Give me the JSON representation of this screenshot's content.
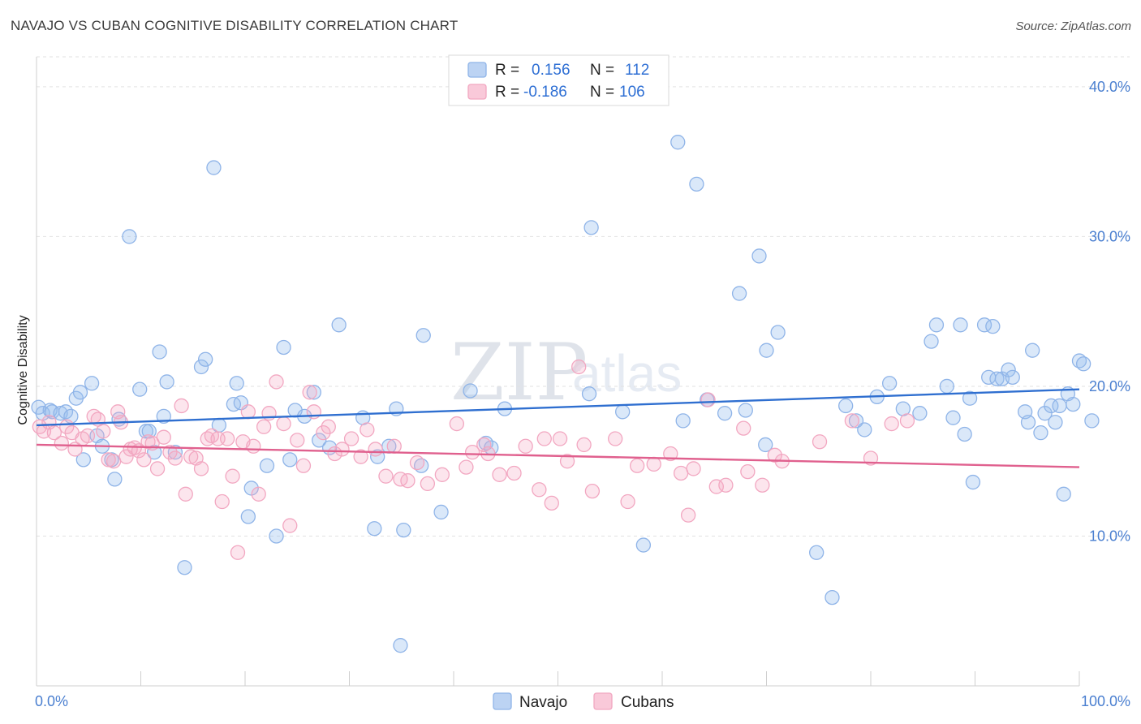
{
  "title": "NAVAJO VS CUBAN COGNITIVE DISABILITY CORRELATION CHART",
  "source": "Source: ZipAtlas.com",
  "watermark": "ZIPatlas",
  "chart_data": {
    "type": "scatter",
    "title": "NAVAJO VS CUBAN COGNITIVE DISABILITY CORRELATION CHART",
    "ylabel": "Cognitive Disability",
    "xlim": [
      0,
      100
    ],
    "ylim": [
      0,
      42
    ],
    "x_tick_labels": [
      "0.0%",
      "100.0%"
    ],
    "y_ticks": [
      10,
      20,
      30,
      40
    ],
    "y_tick_labels": [
      "10.0%",
      "20.0%",
      "30.0%",
      "40.0%"
    ],
    "grid": "horizontal-dashed",
    "legend": {
      "placement": "top-center",
      "entries": [
        {
          "r_label": "R =",
          "r": "0.156",
          "n_label": "N =",
          "n": "112"
        },
        {
          "r_label": "R =",
          "r": "-0.186",
          "n_label": "N =",
          "n": "106"
        }
      ]
    },
    "series": [
      {
        "name": "Navajo",
        "color": "#8fb4e8",
        "line_color": "#2f6fd0",
        "trend": [
          [
            0,
            17.4
          ],
          [
            100,
            19.8
          ]
        ],
        "points": [
          [
            0.2,
            18.6
          ],
          [
            0.6,
            18.2
          ],
          [
            1.3,
            18.4
          ],
          [
            1.5,
            18.3
          ],
          [
            2.3,
            18.2
          ],
          [
            2.8,
            18.3
          ],
          [
            3.3,
            18.0
          ],
          [
            3.8,
            19.2
          ],
          [
            4.2,
            19.6
          ],
          [
            4.5,
            15.1
          ],
          [
            5.3,
            20.2
          ],
          [
            5.8,
            16.7
          ],
          [
            6.3,
            16.0
          ],
          [
            7.2,
            15.1
          ],
          [
            7.5,
            13.8
          ],
          [
            7.9,
            17.8
          ],
          [
            8.9,
            30.0
          ],
          [
            9.9,
            19.8
          ],
          [
            10.5,
            17.0
          ],
          [
            10.8,
            17.0
          ],
          [
            11.3,
            15.6
          ],
          [
            11.8,
            22.3
          ],
          [
            12.2,
            18.0
          ],
          [
            12.5,
            20.3
          ],
          [
            13.3,
            15.6
          ],
          [
            14.2,
            7.9
          ],
          [
            15.8,
            21.3
          ],
          [
            16.2,
            21.8
          ],
          [
            17.0,
            34.6
          ],
          [
            17.5,
            17.4
          ],
          [
            18.9,
            18.8
          ],
          [
            19.2,
            20.2
          ],
          [
            19.6,
            18.9
          ],
          [
            20.3,
            11.3
          ],
          [
            20.6,
            13.2
          ],
          [
            22.1,
            14.7
          ],
          [
            23.0,
            10.0
          ],
          [
            23.7,
            22.6
          ],
          [
            24.3,
            15.1
          ],
          [
            24.8,
            18.4
          ],
          [
            25.7,
            18.0
          ],
          [
            26.6,
            19.6
          ],
          [
            27.1,
            16.4
          ],
          [
            28.1,
            15.9
          ],
          [
            29.0,
            24.1
          ],
          [
            31.3,
            17.9
          ],
          [
            32.7,
            15.3
          ],
          [
            32.4,
            10.5
          ],
          [
            33.8,
            16.0
          ],
          [
            34.5,
            18.5
          ],
          [
            34.9,
            2.7
          ],
          [
            35.2,
            10.4
          ],
          [
            36.9,
            14.7
          ],
          [
            37.1,
            23.4
          ],
          [
            38.8,
            11.6
          ],
          [
            41.6,
            19.7
          ],
          [
            43.1,
            16.2
          ],
          [
            43.6,
            15.9
          ],
          [
            44.9,
            18.5
          ],
          [
            53.0,
            19.5
          ],
          [
            53.2,
            30.6
          ],
          [
            56.2,
            18.3
          ],
          [
            58.2,
            9.4
          ],
          [
            61.5,
            36.3
          ],
          [
            62.0,
            17.7
          ],
          [
            63.3,
            33.5
          ],
          [
            64.3,
            19.1
          ],
          [
            66.0,
            18.2
          ],
          [
            67.4,
            26.2
          ],
          [
            68.0,
            18.4
          ],
          [
            69.3,
            28.7
          ],
          [
            69.9,
            16.1
          ],
          [
            70.0,
            22.4
          ],
          [
            71.1,
            23.6
          ],
          [
            74.8,
            8.9
          ],
          [
            76.3,
            5.9
          ],
          [
            77.6,
            18.7
          ],
          [
            78.6,
            17.7
          ],
          [
            79.4,
            17.1
          ],
          [
            80.6,
            19.3
          ],
          [
            81.8,
            20.2
          ],
          [
            83.1,
            18.5
          ],
          [
            84.7,
            18.2
          ],
          [
            85.8,
            23.0
          ],
          [
            86.3,
            24.1
          ],
          [
            87.3,
            20.0
          ],
          [
            87.9,
            17.9
          ],
          [
            88.6,
            24.1
          ],
          [
            89.0,
            16.8
          ],
          [
            89.5,
            19.2
          ],
          [
            89.8,
            13.6
          ],
          [
            90.9,
            24.1
          ],
          [
            91.3,
            20.6
          ],
          [
            91.7,
            24.0
          ],
          [
            92.1,
            20.5
          ],
          [
            92.6,
            20.5
          ],
          [
            93.2,
            21.1
          ],
          [
            93.6,
            20.6
          ],
          [
            94.8,
            18.3
          ],
          [
            95.1,
            17.6
          ],
          [
            95.5,
            22.4
          ],
          [
            96.3,
            16.9
          ],
          [
            96.7,
            18.2
          ],
          [
            97.3,
            18.7
          ],
          [
            97.7,
            17.6
          ],
          [
            98.1,
            18.7
          ],
          [
            98.5,
            12.8
          ],
          [
            98.9,
            19.5
          ],
          [
            99.4,
            18.8
          ],
          [
            100.0,
            21.7
          ],
          [
            100.4,
            21.5
          ],
          [
            101.2,
            17.7
          ]
        ]
      },
      {
        "name": "Cubans",
        "color": "#f2a7c1",
        "line_color": "#e0608e",
        "trend": [
          [
            0,
            16.1
          ],
          [
            100,
            14.6
          ]
        ],
        "points": [
          [
            0.3,
            17.3
          ],
          [
            0.7,
            17.0
          ],
          [
            1.2,
            17.6
          ],
          [
            1.7,
            16.9
          ],
          [
            2.4,
            16.2
          ],
          [
            2.9,
            17.3
          ],
          [
            3.4,
            16.9
          ],
          [
            3.7,
            15.8
          ],
          [
            4.4,
            16.5
          ],
          [
            4.9,
            16.7
          ],
          [
            5.5,
            18.0
          ],
          [
            5.9,
            17.8
          ],
          [
            6.4,
            17.0
          ],
          [
            6.9,
            15.1
          ],
          [
            7.4,
            15.0
          ],
          [
            7.8,
            18.3
          ],
          [
            8.1,
            17.6
          ],
          [
            8.6,
            15.3
          ],
          [
            9.0,
            15.8
          ],
          [
            9.4,
            15.9
          ],
          [
            9.8,
            15.7
          ],
          [
            10.3,
            15.1
          ],
          [
            10.7,
            16.3
          ],
          [
            11.1,
            16.2
          ],
          [
            11.6,
            14.5
          ],
          [
            12.2,
            16.6
          ],
          [
            12.8,
            15.6
          ],
          [
            13.3,
            15.2
          ],
          [
            13.9,
            18.7
          ],
          [
            14.3,
            12.8
          ],
          [
            14.8,
            15.3
          ],
          [
            15.3,
            15.2
          ],
          [
            15.8,
            14.5
          ],
          [
            16.4,
            16.5
          ],
          [
            16.8,
            16.7
          ],
          [
            17.4,
            16.5
          ],
          [
            17.8,
            12.3
          ],
          [
            18.3,
            16.5
          ],
          [
            18.8,
            14.0
          ],
          [
            19.3,
            8.9
          ],
          [
            19.8,
            16.3
          ],
          [
            20.3,
            18.3
          ],
          [
            20.8,
            16.0
          ],
          [
            21.3,
            12.8
          ],
          [
            21.8,
            17.3
          ],
          [
            22.3,
            18.2
          ],
          [
            23.0,
            20.3
          ],
          [
            23.7,
            17.5
          ],
          [
            24.3,
            10.7
          ],
          [
            25.0,
            16.4
          ],
          [
            25.6,
            14.7
          ],
          [
            26.2,
            19.6
          ],
          [
            26.6,
            18.3
          ],
          [
            27.5,
            16.9
          ],
          [
            28.0,
            17.3
          ],
          [
            28.6,
            15.5
          ],
          [
            29.3,
            15.8
          ],
          [
            30.2,
            16.5
          ],
          [
            31.1,
            15.3
          ],
          [
            31.7,
            17.1
          ],
          [
            32.5,
            15.8
          ],
          [
            33.5,
            14.0
          ],
          [
            34.3,
            16.0
          ],
          [
            34.9,
            13.8
          ],
          [
            35.6,
            13.7
          ],
          [
            36.5,
            14.9
          ],
          [
            37.5,
            13.5
          ],
          [
            38.9,
            14.1
          ],
          [
            40.3,
            17.5
          ],
          [
            41.2,
            14.6
          ],
          [
            41.8,
            15.6
          ],
          [
            42.9,
            16.1
          ],
          [
            43.3,
            15.5
          ],
          [
            44.4,
            14.1
          ],
          [
            45.8,
            14.2
          ],
          [
            46.9,
            16.0
          ],
          [
            48.2,
            13.1
          ],
          [
            48.7,
            16.5
          ],
          [
            49.4,
            12.2
          ],
          [
            50.2,
            16.5
          ],
          [
            50.9,
            15.0
          ],
          [
            52.0,
            21.3
          ],
          [
            52.5,
            16.1
          ],
          [
            53.3,
            13.0
          ],
          [
            55.5,
            16.5
          ],
          [
            56.7,
            12.3
          ],
          [
            57.6,
            14.7
          ],
          [
            59.2,
            14.8
          ],
          [
            60.8,
            15.5
          ],
          [
            61.8,
            14.2
          ],
          [
            62.5,
            11.4
          ],
          [
            63.0,
            14.5
          ],
          [
            64.4,
            19.1
          ],
          [
            65.2,
            13.3
          ],
          [
            66.1,
            13.4
          ],
          [
            67.8,
            17.2
          ],
          [
            68.2,
            14.3
          ],
          [
            69.6,
            13.4
          ],
          [
            70.8,
            15.4
          ],
          [
            71.5,
            15.0
          ],
          [
            75.1,
            16.3
          ],
          [
            78.2,
            17.7
          ],
          [
            80.0,
            15.2
          ],
          [
            82.0,
            17.5
          ],
          [
            83.5,
            17.7
          ]
        ]
      }
    ]
  }
}
